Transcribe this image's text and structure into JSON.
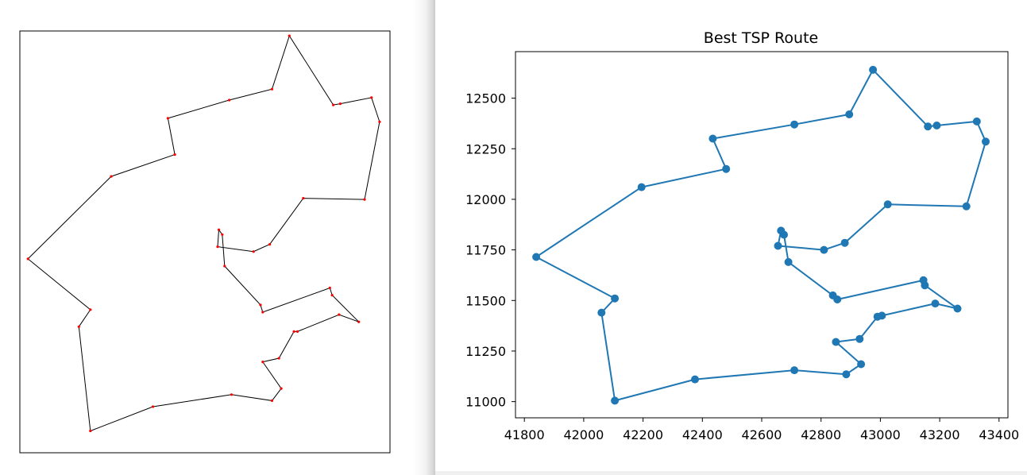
{
  "colors": {
    "route_line": "#1f77b4",
    "route_marker": "#1f77b4",
    "left_route_line": "#000000",
    "left_route_marker": "#ff0000"
  },
  "chart_data": [
    {
      "type": "line",
      "title": "",
      "xlabel": "",
      "ylabel": "",
      "xlim": [
        41800,
        43400
      ],
      "ylim": [
        10920,
        12660
      ],
      "grid": false,
      "axes_visible": false,
      "series": [
        {
          "marker": "dot",
          "x": [
            42965,
            42890,
            42705,
            42440,
            42470,
            42195,
            41835,
            42105,
            42055,
            42105,
            42375,
            42715,
            42890,
            42930,
            42850,
            42920,
            42985,
            43000,
            43180,
            43265,
            43150,
            43140,
            42850,
            42840,
            42685,
            42675,
            42660,
            42655,
            42810,
            42880,
            43025,
            43290,
            43355,
            43320,
            43185,
            43155,
            42965
          ],
          "y": [
            12640,
            12420,
            12375,
            12300,
            12150,
            12060,
            11720,
            11510,
            11440,
            11010,
            11110,
            11160,
            11135,
            11185,
            11295,
            11310,
            11420,
            11420,
            11490,
            11460,
            11570,
            11600,
            11500,
            11530,
            11690,
            11820,
            11840,
            11770,
            11750,
            11780,
            11970,
            11965,
            12285,
            12385,
            12360,
            12355,
            12640
          ]
        }
      ]
    },
    {
      "type": "line",
      "title": "Best TSP Route",
      "xlabel": "",
      "ylabel": "",
      "xlim": [
        41770,
        43430
      ],
      "ylim": [
        10920,
        12730
      ],
      "x_ticks": [
        "41800",
        "42000",
        "42200",
        "42400",
        "42600",
        "42800",
        "43000",
        "43200",
        "43400"
      ],
      "y_ticks": [
        "11000",
        "11250",
        "11500",
        "11750",
        "12000",
        "12250",
        "12500"
      ],
      "grid": false,
      "series": [
        {
          "marker": "circle",
          "x": [
            42975,
            42895,
            42710,
            42435,
            42480,
            42195,
            41840,
            42105,
            42060,
            42105,
            42375,
            42710,
            42885,
            42935,
            42850,
            42930,
            42990,
            43005,
            43185,
            43260,
            43150,
            43145,
            42855,
            42840,
            42690,
            42675,
            42665,
            42655,
            42810,
            42880,
            43025,
            43290,
            43355,
            43325,
            43190,
            43160,
            42975
          ],
          "y": [
            12640,
            12420,
            12370,
            12300,
            12150,
            12060,
            11715,
            11510,
            11440,
            11005,
            11110,
            11155,
            11135,
            11185,
            11295,
            11310,
            11420,
            11425,
            11485,
            11460,
            11575,
            11600,
            11505,
            11525,
            11690,
            11825,
            11845,
            11770,
            11750,
            11785,
            11975,
            11965,
            12285,
            12385,
            12365,
            12360,
            12640
          ]
        }
      ]
    }
  ]
}
